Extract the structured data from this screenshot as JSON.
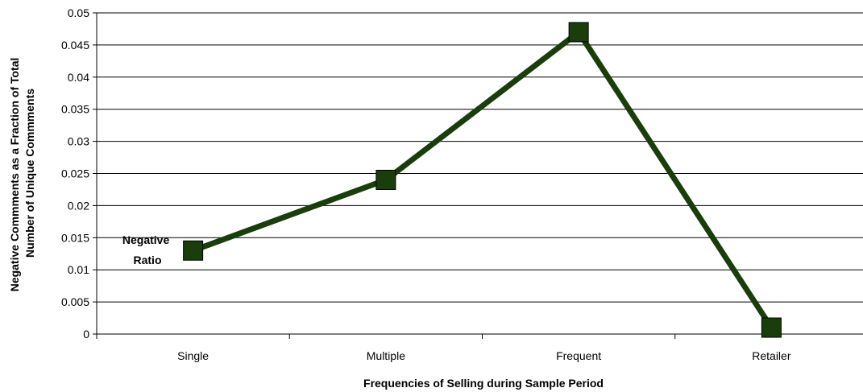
{
  "chart_data": {
    "type": "line",
    "categories": [
      "Single",
      "Multiple",
      "Frequent",
      "Retailer"
    ],
    "series": [
      {
        "name": "Negative Ratio",
        "values": [
          0.013,
          0.024,
          0.047,
          0.001
        ],
        "color": "#1a3d0c"
      }
    ],
    "xlabel": "Frequencies of Selling during Sample Period",
    "ylabel": [
      "Negative Commments as a Fraction of Total",
      "Number of Unique Commments"
    ],
    "ylim": [
      0,
      0.05
    ],
    "yticks": [
      "0",
      "0.005",
      "0.01",
      "0.015",
      "0.02",
      "0.025",
      "0.03",
      "0.035",
      "0.04",
      "0.045",
      "0.05"
    ],
    "grid": true,
    "annotation": {
      "lines": [
        "Negative",
        "Ratio"
      ]
    }
  }
}
